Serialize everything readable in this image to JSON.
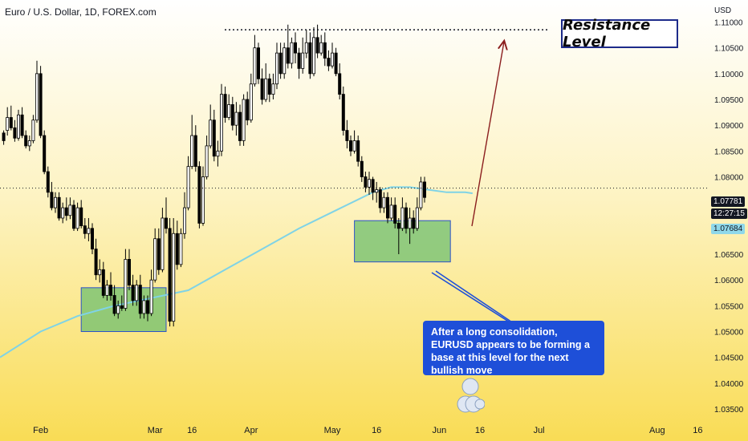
{
  "symbol_title": "Euro / U.S. Dollar, 1D, FOREX.com",
  "currency_label": "USD",
  "price_badges": {
    "last_price": "1.07781",
    "countdown": "12:27:15",
    "ma_value": "1.07684"
  },
  "annotations": {
    "resistance_label": "Resistance Level",
    "callout_text": "After a long consolidation, EURUSD appears to be forming a base at this level for the next bullish move"
  },
  "colors": {
    "up_candle": "#ffffff",
    "down_candle": "#000000",
    "ma_line": "#7fd3e6",
    "zone_fill": "#6fbf6f",
    "zone_border": "#2d52c9",
    "callout_bg": "#1e4fd8",
    "arrow": "#8b1e1e",
    "badge_price": "#131722",
    "badge_ma": "#8fd8ea"
  },
  "chart_data": {
    "type": "candlestick",
    "instrument": "EURUSD",
    "timeframe": "1D",
    "y_tick_labels": [
      "1.11000",
      "1.10500",
      "1.10000",
      "1.09500",
      "1.09000",
      "1.08500",
      "1.08000",
      "1.07500",
      "1.07000",
      "1.06500",
      "1.06000",
      "1.05500",
      "1.05000",
      "1.04500",
      "1.04000",
      "1.03500"
    ],
    "y_ticks": [
      1.11,
      1.105,
      1.1,
      1.095,
      1.09,
      1.085,
      1.08,
      1.075,
      1.07,
      1.065,
      1.06,
      1.055,
      1.05,
      1.045,
      1.04,
      1.035
    ],
    "ylim": [
      1.035,
      1.1135
    ],
    "x_tick_labels": [
      "Feb",
      "Mar",
      "16",
      "Apr",
      "May",
      "16",
      "Jun",
      "16",
      "Jul",
      "Aug",
      "16"
    ],
    "x_tick_index": [
      10,
      41,
      51,
      67,
      89,
      101,
      118,
      129,
      145,
      177,
      188
    ],
    "resistance_level": 1.1085,
    "ma_label_value": 1.07684,
    "last_price": 1.07781,
    "ma_series": [
      [
        -1,
        1.045
      ],
      [
        10,
        1.05
      ],
      [
        20,
        1.053
      ],
      [
        30,
        1.055
      ],
      [
        40,
        1.0565
      ],
      [
        50,
        1.058
      ],
      [
        60,
        1.062
      ],
      [
        70,
        1.066
      ],
      [
        80,
        1.07
      ],
      [
        90,
        1.0735
      ],
      [
        100,
        1.077
      ],
      [
        105,
        1.078
      ],
      [
        110,
        1.078
      ],
      [
        115,
        1.0775
      ],
      [
        120,
        1.077
      ],
      [
        125,
        1.077
      ],
      [
        127,
        1.0768
      ]
    ],
    "candles": [
      [
        1.0885,
        1.089,
        1.087,
        1.0862
      ],
      [
        1.089,
        1.0935,
        1.0915,
        1.088
      ],
      [
        1.0915,
        1.0938,
        1.0895,
        1.089
      ],
      [
        1.0895,
        1.091,
        1.0875,
        1.0868
      ],
      [
        1.0875,
        1.093,
        1.092,
        1.087
      ],
      [
        1.092,
        1.0935,
        1.088,
        1.0875
      ],
      [
        1.088,
        1.089,
        1.086,
        1.0855
      ],
      [
        1.086,
        1.088,
        1.087,
        1.085
      ],
      [
        1.087,
        1.092,
        1.091,
        1.0865
      ],
      [
        1.091,
        1.1025,
        1.1,
        1.0905
      ],
      [
        1.1,
        1.1015,
        1.088,
        1.0875
      ],
      [
        1.088,
        1.089,
        1.081,
        1.0805
      ],
      [
        1.081,
        1.082,
        1.077,
        1.076
      ],
      [
        1.077,
        1.079,
        1.074,
        1.0735
      ],
      [
        1.074,
        1.077,
        1.076,
        1.073
      ],
      [
        1.076,
        1.077,
        1.072,
        1.0715
      ],
      [
        1.072,
        1.075,
        1.074,
        1.071
      ],
      [
        1.074,
        1.076,
        1.0725,
        1.0715
      ],
      [
        1.0725,
        1.076,
        1.0745,
        1.0718
      ],
      [
        1.0745,
        1.0755,
        1.07,
        1.0695
      ],
      [
        1.07,
        1.075,
        1.074,
        1.0695
      ],
      [
        1.074,
        1.0755,
        1.0705,
        1.07
      ],
      [
        1.0705,
        1.072,
        1.069,
        1.068
      ],
      [
        1.069,
        1.072,
        1.07,
        1.0675
      ],
      [
        1.07,
        1.071,
        1.066,
        1.065
      ],
      [
        1.066,
        1.068,
        1.061,
        1.06
      ],
      [
        1.061,
        1.064,
        1.062,
        1.0595
      ],
      [
        1.062,
        1.0635,
        1.057,
        1.0565
      ],
      [
        1.057,
        1.06,
        1.059,
        1.056
      ],
      [
        1.059,
        1.0615,
        1.057,
        1.056
      ],
      [
        1.057,
        1.059,
        1.0535,
        1.053
      ],
      [
        1.0535,
        1.056,
        1.055,
        1.0525
      ],
      [
        1.055,
        1.057,
        1.0545,
        1.054
      ],
      [
        1.0545,
        1.066,
        1.064,
        1.054
      ],
      [
        1.064,
        1.066,
        1.059,
        1.058
      ],
      [
        1.059,
        1.061,
        1.056,
        1.055
      ],
      [
        1.056,
        1.06,
        1.059,
        1.055
      ],
      [
        1.059,
        1.061,
        1.0535,
        1.0525
      ],
      [
        1.0535,
        1.057,
        1.056,
        1.0525
      ],
      [
        1.056,
        1.057,
        1.0535,
        1.052
      ],
      [
        1.0535,
        1.062,
        1.06,
        1.053
      ],
      [
        1.06,
        1.07,
        1.068,
        1.0595
      ],
      [
        1.068,
        1.07,
        1.062,
        1.061
      ],
      [
        1.062,
        1.074,
        1.072,
        1.0615
      ],
      [
        1.072,
        1.076,
        1.07,
        1.069
      ],
      [
        1.07,
        1.072,
        1.052,
        1.051
      ],
      [
        1.052,
        1.072,
        1.069,
        1.051
      ],
      [
        1.069,
        1.0715,
        1.063,
        1.062
      ],
      [
        1.063,
        1.07,
        1.069,
        1.0625
      ],
      [
        1.069,
        1.077,
        1.074,
        1.068
      ],
      [
        1.074,
        1.084,
        1.082,
        1.0735
      ],
      [
        1.082,
        1.092,
        1.088,
        1.0815
      ],
      [
        1.088,
        1.09,
        1.082,
        1.081
      ],
      [
        1.082,
        1.083,
        1.071,
        1.07
      ],
      [
        1.071,
        1.082,
        1.08,
        1.0705
      ],
      [
        1.08,
        1.088,
        1.086,
        1.0795
      ],
      [
        1.086,
        1.094,
        1.091,
        1.0855
      ],
      [
        1.091,
        1.093,
        1.084,
        1.083
      ],
      [
        1.084,
        1.087,
        1.085,
        1.082
      ],
      [
        1.085,
        1.098,
        1.096,
        1.084
      ],
      [
        1.096,
        1.0975,
        1.0915,
        1.0905
      ],
      [
        1.0915,
        1.096,
        1.094,
        1.091
      ],
      [
        1.094,
        1.0955,
        1.09,
        1.089
      ],
      [
        1.09,
        1.0945,
        1.0925,
        1.088
      ],
      [
        1.0925,
        1.094,
        1.087,
        1.086
      ],
      [
        1.087,
        1.096,
        1.095,
        1.086
      ],
      [
        1.095,
        1.0965,
        1.091,
        1.09
      ],
      [
        1.091,
        1.1,
        1.098,
        1.0905
      ],
      [
        1.098,
        1.1075,
        1.105,
        1.0975
      ],
      [
        1.105,
        1.106,
        1.099,
        1.098
      ],
      [
        1.099,
        1.101,
        1.095,
        1.094
      ],
      [
        1.095,
        1.102,
        1.099,
        1.0945
      ],
      [
        1.099,
        1.1,
        1.096,
        1.0945
      ],
      [
        1.096,
        1.1,
        1.098,
        1.095
      ],
      [
        1.098,
        1.106,
        1.104,
        1.097
      ],
      [
        1.104,
        1.106,
        1.1,
        1.099
      ],
      [
        1.1,
        1.106,
        1.105,
        1.099
      ],
      [
        1.105,
        1.1095,
        1.102,
        1.101
      ],
      [
        1.102,
        1.107,
        1.106,
        1.101
      ],
      [
        1.106,
        1.108,
        1.104,
        1.102
      ],
      [
        1.104,
        1.105,
        1.101,
        1.099
      ],
      [
        1.101,
        1.107,
        1.104,
        1.1
      ],
      [
        1.104,
        1.1085,
        1.106,
        1.103
      ],
      [
        1.106,
        1.108,
        1.1,
        1.099
      ],
      [
        1.1,
        1.109,
        1.107,
        1.0995
      ],
      [
        1.107,
        1.1095,
        1.104,
        1.103
      ],
      [
        1.104,
        1.1075,
        1.106,
        1.1035
      ],
      [
        1.106,
        1.108,
        1.103,
        1.1015
      ],
      [
        1.103,
        1.1045,
        1.1015,
        1.1005
      ],
      [
        1.1015,
        1.106,
        1.104,
        1.101
      ],
      [
        1.104,
        1.105,
        1.1,
        1.0995
      ],
      [
        1.1,
        1.102,
        1.096,
        1.095
      ],
      [
        1.096,
        1.0975,
        1.089,
        1.088
      ],
      [
        1.089,
        1.091,
        1.087,
        1.0855
      ],
      [
        1.087,
        1.088,
        1.085,
        1.084
      ],
      [
        1.085,
        1.089,
        1.087,
        1.0845
      ],
      [
        1.087,
        1.088,
        1.083,
        1.082
      ],
      [
        1.083,
        1.084,
        1.08,
        1.079
      ],
      [
        1.08,
        1.081,
        1.078,
        1.077
      ],
      [
        1.078,
        1.081,
        1.0795,
        1.0765
      ],
      [
        1.0795,
        1.08,
        1.077,
        1.0755
      ],
      [
        1.077,
        1.079,
        1.0775,
        1.075
      ],
      [
        1.0775,
        1.078,
        1.074,
        1.073
      ],
      [
        1.074,
        1.077,
        1.076,
        1.073
      ],
      [
        1.076,
        1.077,
        1.072,
        1.071
      ],
      [
        1.072,
        1.076,
        1.0745,
        1.0715
      ],
      [
        1.0745,
        1.076,
        1.071,
        1.07
      ],
      [
        1.071,
        1.072,
        1.07,
        1.065
      ],
      [
        1.07,
        1.076,
        1.074,
        1.0695
      ],
      [
        1.074,
        1.075,
        1.07,
        1.069
      ],
      [
        1.07,
        1.074,
        1.072,
        1.067
      ],
      [
        1.072,
        1.0735,
        1.07,
        1.069
      ],
      [
        1.07,
        1.076,
        1.074,
        1.0695
      ],
      [
        1.074,
        1.08,
        1.079,
        1.0735
      ],
      [
        1.079,
        1.08,
        1.076,
        1.075
      ]
    ],
    "base_zones": [
      {
        "x_from_index": 21,
        "x_to_index": 44,
        "y_low": 1.05,
        "y_high": 1.0585
      },
      {
        "x_from_index": 95,
        "x_to_index": 121,
        "y_low": 1.0635,
        "y_high": 1.0715
      }
    ]
  }
}
